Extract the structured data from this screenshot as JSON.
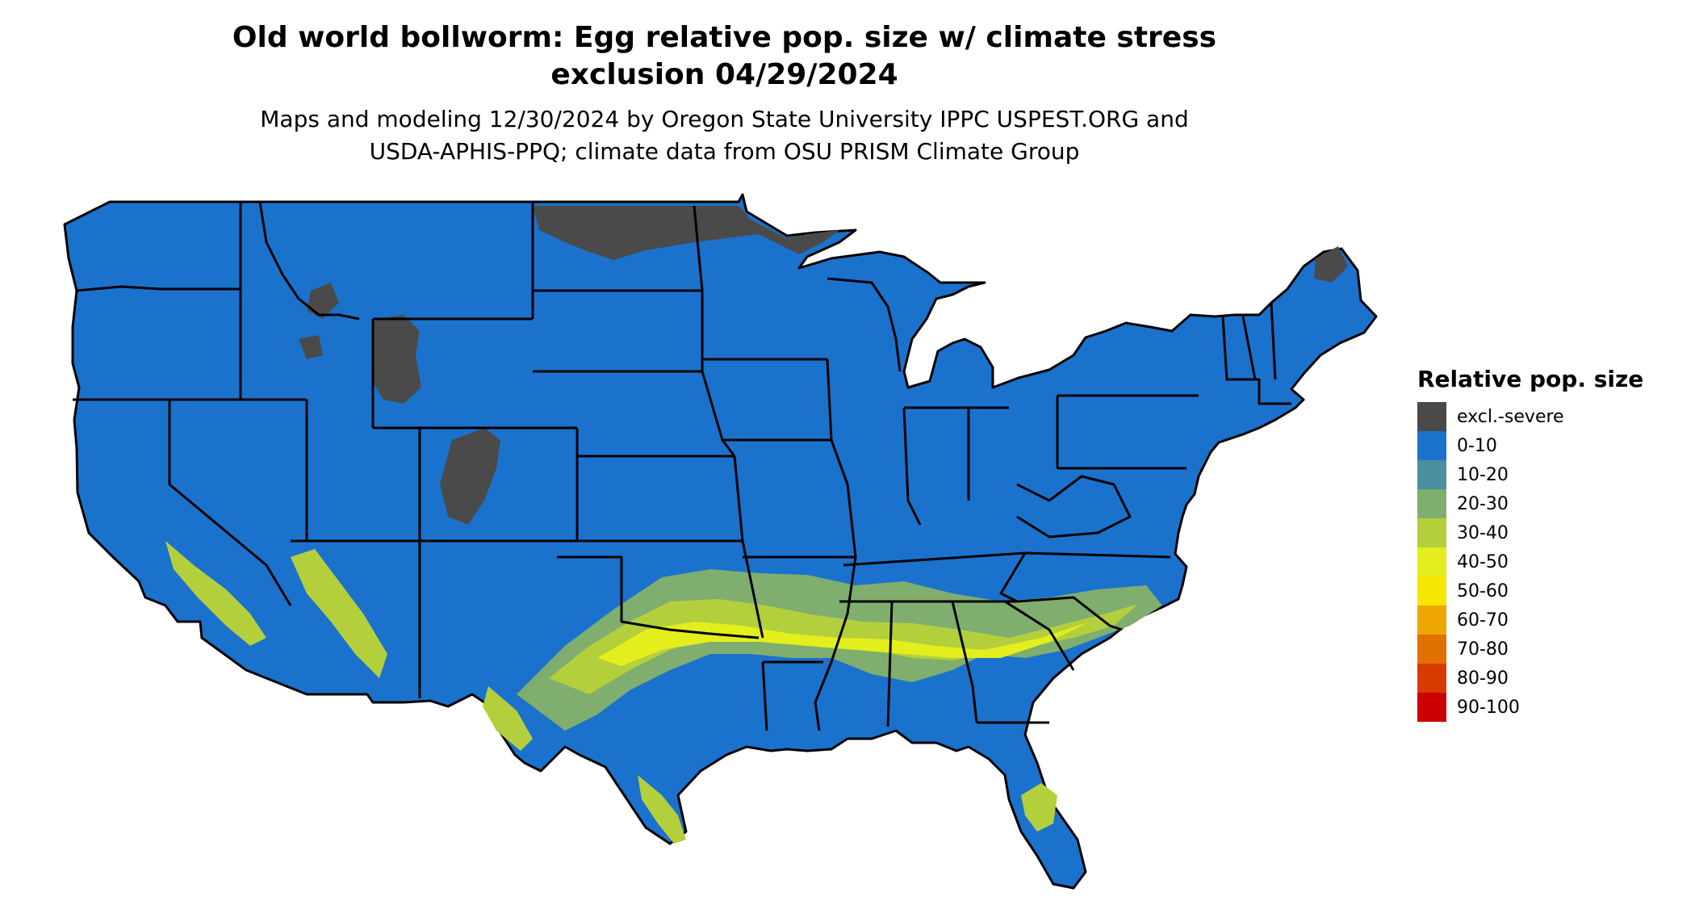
{
  "title": {
    "line1": "Old world bollworm: Egg relative pop. size w/ climate stress",
    "line2": "exclusion 04/29/2024"
  },
  "subtitle": {
    "line1": "Maps and modeling 12/30/2024 by Oregon State University IPPC USPEST.ORG and",
    "line2": "USDA-APHIS-PPQ; climate data from OSU PRISM Climate Group"
  },
  "legend": {
    "title": "Relative pop. size",
    "items": [
      {
        "label": "excl.-severe",
        "color": "#4a4a4a"
      },
      {
        "label": "0-10",
        "color": "#1b72cc"
      },
      {
        "label": "10-20",
        "color": "#4a8fa0"
      },
      {
        "label": "20-30",
        "color": "#7fae6e"
      },
      {
        "label": "30-40",
        "color": "#b3cf3c"
      },
      {
        "label": "40-50",
        "color": "#e3ee1c"
      },
      {
        "label": "50-60",
        "color": "#f7e600"
      },
      {
        "label": "60-70",
        "color": "#eea600"
      },
      {
        "label": "70-80",
        "color": "#e07000"
      },
      {
        "label": "80-90",
        "color": "#d83a00"
      },
      {
        "label": "90-100",
        "color": "#cc0000"
      }
    ]
  },
  "map": {
    "region": "contiguous United States",
    "base_color": "#1b72cc",
    "border_color": "#000000"
  }
}
